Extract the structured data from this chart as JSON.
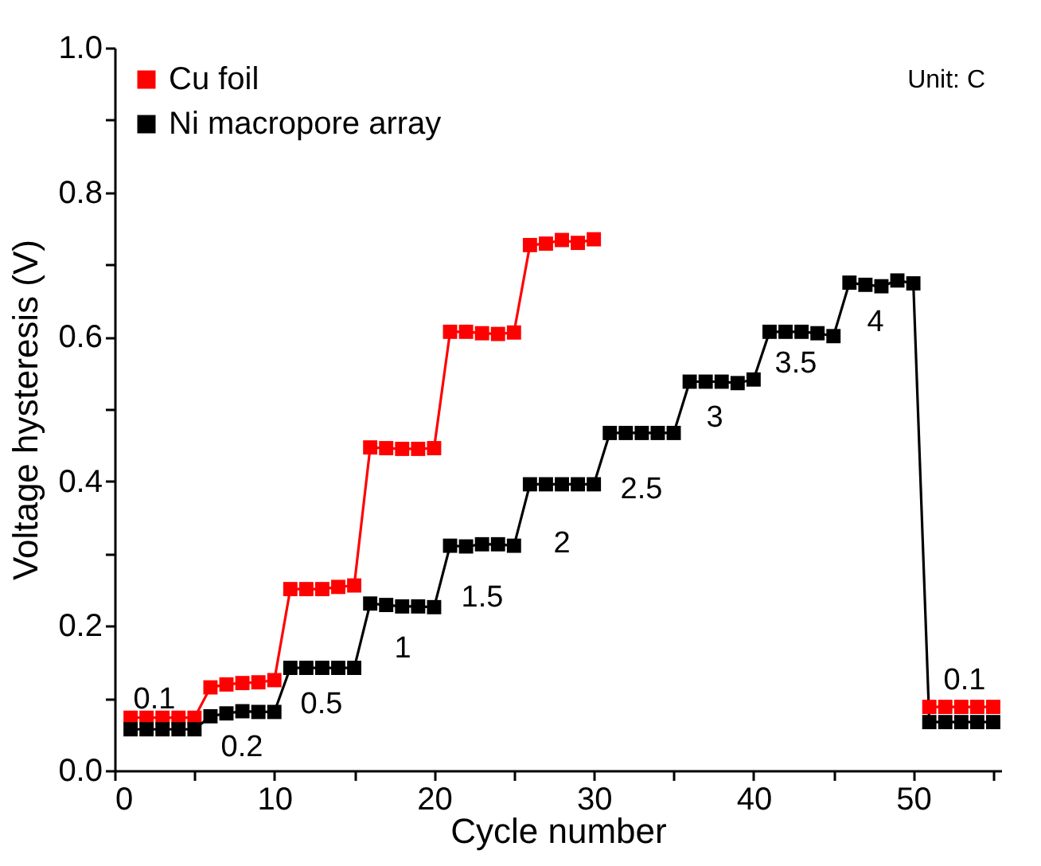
{
  "chart_data": {
    "type": "line",
    "xlabel": "Cycle number",
    "ylabel": "Voltage hysteresis (V)",
    "xlim": [
      0,
      55.5
    ],
    "ylim": [
      0,
      1.0
    ],
    "xticks": [
      0,
      {
        "value": 5,
        "label": null
      },
      10,
      {
        "value": 15,
        "label": null
      },
      20,
      {
        "value": 25,
        "label": null
      },
      30,
      {
        "value": 35,
        "label": null
      },
      40,
      {
        "value": 45,
        "label": null
      },
      50,
      {
        "value": 55,
        "label": null
      }
    ],
    "yticks": [
      {
        "value": 0,
        "label": "0.0"
      },
      {
        "value": 0.1,
        "label": null
      },
      {
        "value": 0.2,
        "label": "0.2"
      },
      {
        "value": 0.3,
        "label": null
      },
      {
        "value": 0.4,
        "label": "0.4"
      },
      {
        "value": 0.5,
        "label": null
      },
      {
        "value": 0.6,
        "label": "0.6"
      },
      {
        "value": 0.7,
        "label": null
      },
      {
        "value": 0.8,
        "label": "0.8"
      },
      {
        "value": 0.9,
        "label": null
      },
      {
        "value": 1.0,
        "label": "1.0"
      }
    ],
    "marker": "square",
    "legend": "top left",
    "grid": false,
    "x": [
      1,
      2,
      3,
      4,
      5,
      6,
      7,
      8,
      9,
      10,
      11,
      12,
      13,
      14,
      15,
      16,
      17,
      18,
      19,
      20,
      21,
      22,
      23,
      24,
      25,
      26,
      27,
      28,
      29,
      30,
      31,
      32,
      33,
      34,
      35,
      36,
      37,
      38,
      39,
      40,
      41,
      42,
      43,
      44,
      45,
      46,
      47,
      48,
      49,
      50,
      51,
      52,
      53,
      54,
      55
    ],
    "series": [
      {
        "name": "Cu foil",
        "color": "#ff0000",
        "values": [
          0.073,
          0.073,
          0.073,
          0.073,
          0.073,
          0.115,
          0.119,
          0.121,
          0.122,
          0.125,
          0.251,
          0.251,
          0.251,
          0.254,
          0.256,
          0.447,
          0.446,
          0.445,
          0.445,
          0.446,
          0.607,
          0.607,
          0.605,
          0.604,
          0.606,
          0.727,
          0.729,
          0.734,
          0.73,
          0.735,
          null,
          null,
          null,
          null,
          null,
          null,
          null,
          null,
          null,
          null,
          null,
          null,
          null,
          null,
          null,
          null,
          null,
          null,
          null,
          null,
          0.088,
          0.088,
          0.088,
          0.088,
          0.088
        ]
      },
      {
        "name": "Ni macropore array",
        "color": "#000000",
        "values": [
          0.057,
          0.057,
          0.057,
          0.057,
          0.057,
          0.075,
          0.079,
          0.082,
          0.081,
          0.081,
          0.142,
          0.142,
          0.142,
          0.142,
          0.142,
          0.231,
          0.229,
          0.227,
          0.227,
          0.226,
          0.311,
          0.31,
          0.313,
          0.313,
          0.311,
          0.396,
          0.396,
          0.396,
          0.396,
          0.396,
          0.467,
          0.467,
          0.467,
          0.467,
          0.467,
          0.538,
          0.538,
          0.538,
          0.536,
          0.541,
          0.607,
          0.607,
          0.607,
          0.605,
          0.601,
          0.675,
          0.672,
          0.67,
          0.678,
          0.674,
          0.067,
          0.067,
          0.067,
          0.067,
          0.067
        ]
      }
    ],
    "annotations": [
      "0.1",
      "0.2",
      "0.5",
      "1",
      "1.5",
      "2",
      "2.5",
      "3",
      "3.5",
      "4",
      "0.1",
      "Unit: C"
    ]
  }
}
